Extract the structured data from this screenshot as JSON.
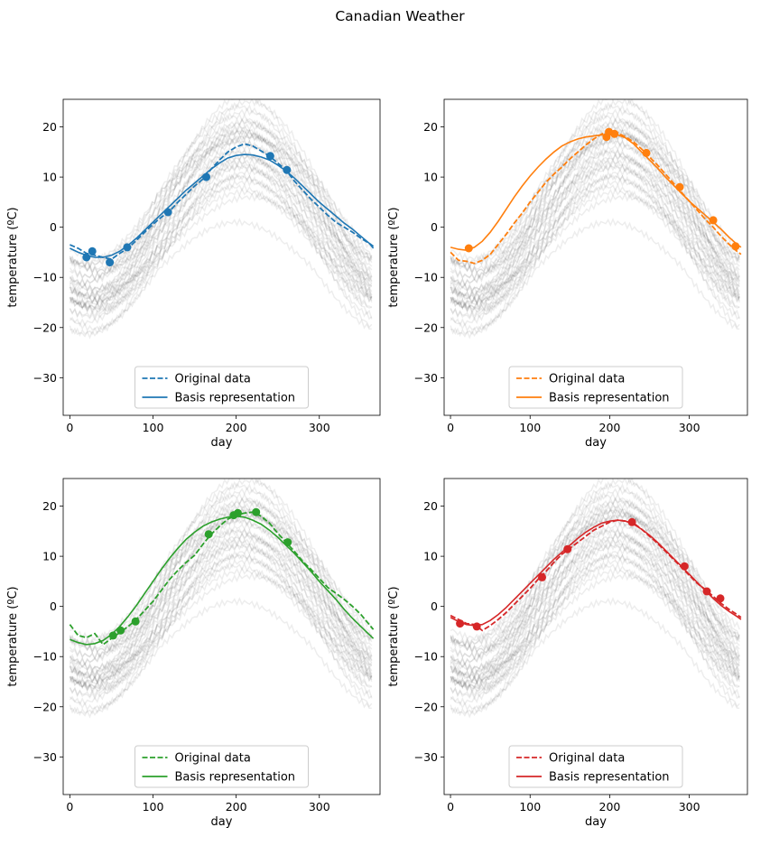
{
  "figure": {
    "title": "Canadian Weather"
  },
  "chart_data": [
    {
      "type": "line",
      "xlabel": "day",
      "ylabel": "temperature (ºC)",
      "xlim": [
        -8,
        373
      ],
      "ylim": [
        -37.5,
        25.5
      ],
      "xticks": [
        0,
        100,
        200,
        300
      ],
      "yticks": [
        -30,
        -20,
        -10,
        0,
        10,
        20
      ],
      "color": "#1f77b4",
      "legend": {
        "location": "lower center",
        "entries": [
          "Original data",
          "Basis representation"
        ]
      },
      "original_data": [
        [
          0,
          -3.5
        ],
        [
          10,
          -4.2
        ],
        [
          20,
          -5.2
        ],
        [
          30,
          -5.6
        ],
        [
          40,
          -6.0
        ],
        [
          50,
          -6.4
        ],
        [
          60,
          -5.2
        ],
        [
          70,
          -4.2
        ],
        [
          80,
          -2.6
        ],
        [
          90,
          -1.0
        ],
        [
          100,
          0.6
        ],
        [
          110,
          2.0
        ],
        [
          120,
          3.2
        ],
        [
          130,
          5.0
        ],
        [
          140,
          6.6
        ],
        [
          150,
          8.2
        ],
        [
          160,
          9.6
        ],
        [
          170,
          11.6
        ],
        [
          180,
          13.4
        ],
        [
          190,
          15.0
        ],
        [
          200,
          16.0
        ],
        [
          210,
          16.6
        ],
        [
          220,
          16.2
        ],
        [
          230,
          15.2
        ],
        [
          240,
          14.2
        ],
        [
          250,
          12.8
        ],
        [
          260,
          11.4
        ],
        [
          270,
          9.2
        ],
        [
          280,
          7.4
        ],
        [
          290,
          5.6
        ],
        [
          300,
          4.0
        ],
        [
          310,
          2.4
        ],
        [
          320,
          1.0
        ],
        [
          330,
          0.0
        ],
        [
          340,
          -1.0
        ],
        [
          350,
          -2.2
        ],
        [
          360,
          -3.2
        ],
        [
          365,
          -3.8
        ]
      ],
      "basis_representation": [
        [
          0,
          -4.2
        ],
        [
          10,
          -5.0
        ],
        [
          20,
          -5.6
        ],
        [
          30,
          -6.0
        ],
        [
          40,
          -6.0
        ],
        [
          50,
          -5.6
        ],
        [
          60,
          -4.8
        ],
        [
          70,
          -3.6
        ],
        [
          80,
          -2.2
        ],
        [
          90,
          -0.6
        ],
        [
          100,
          1.0
        ],
        [
          110,
          2.6
        ],
        [
          120,
          4.2
        ],
        [
          130,
          5.8
        ],
        [
          140,
          7.4
        ],
        [
          150,
          8.8
        ],
        [
          160,
          10.2
        ],
        [
          170,
          11.6
        ],
        [
          180,
          12.8
        ],
        [
          190,
          13.8
        ],
        [
          200,
          14.3
        ],
        [
          210,
          14.5
        ],
        [
          220,
          14.4
        ],
        [
          230,
          14.0
        ],
        [
          240,
          13.4
        ],
        [
          250,
          12.4
        ],
        [
          260,
          11.2
        ],
        [
          270,
          9.8
        ],
        [
          280,
          8.2
        ],
        [
          290,
          6.6
        ],
        [
          300,
          5.0
        ],
        [
          310,
          3.6
        ],
        [
          320,
          2.2
        ],
        [
          330,
          0.8
        ],
        [
          340,
          -0.4
        ],
        [
          350,
          -1.8
        ],
        [
          360,
          -3.2
        ],
        [
          365,
          -4.2
        ]
      ],
      "sample_points": [
        [
          20,
          -6.0
        ],
        [
          27,
          -4.8
        ],
        [
          48,
          -7.0
        ],
        [
          69,
          -4.0
        ],
        [
          118,
          3.0
        ],
        [
          164,
          10.0
        ],
        [
          241,
          14.2
        ],
        [
          261,
          11.4
        ]
      ]
    },
    {
      "type": "line",
      "xlabel": "day",
      "ylabel": "temperature (ºC)",
      "xlim": [
        -8,
        373
      ],
      "ylim": [
        -37.5,
        25.5
      ],
      "xticks": [
        0,
        100,
        200,
        300
      ],
      "yticks": [
        -30,
        -20,
        -10,
        0,
        10,
        20
      ],
      "color": "#ff7f0e",
      "legend": {
        "location": "lower center",
        "entries": [
          "Original data",
          "Basis representation"
        ]
      },
      "original_data": [
        [
          0,
          -5.0
        ],
        [
          10,
          -6.6
        ],
        [
          20,
          -6.8
        ],
        [
          30,
          -7.2
        ],
        [
          40,
          -6.6
        ],
        [
          50,
          -5.4
        ],
        [
          60,
          -3.4
        ],
        [
          70,
          -1.4
        ],
        [
          80,
          0.8
        ],
        [
          90,
          2.8
        ],
        [
          100,
          5.0
        ],
        [
          110,
          7.0
        ],
        [
          120,
          9.0
        ],
        [
          130,
          10.6
        ],
        [
          140,
          12.0
        ],
        [
          150,
          13.6
        ],
        [
          160,
          15.0
        ],
        [
          170,
          16.4
        ],
        [
          180,
          17.6
        ],
        [
          190,
          18.6
        ],
        [
          200,
          19.0
        ],
        [
          210,
          18.8
        ],
        [
          220,
          18.0
        ],
        [
          230,
          17.0
        ],
        [
          240,
          15.6
        ],
        [
          250,
          14.0
        ],
        [
          260,
          12.4
        ],
        [
          270,
          10.6
        ],
        [
          280,
          8.8
        ],
        [
          290,
          7.0
        ],
        [
          300,
          5.2
        ],
        [
          310,
          3.4
        ],
        [
          320,
          1.6
        ],
        [
          330,
          0.0
        ],
        [
          340,
          -1.8
        ],
        [
          350,
          -3.4
        ],
        [
          360,
          -4.8
        ],
        [
          365,
          -5.4
        ]
      ],
      "basis_representation": [
        [
          0,
          -4.0
        ],
        [
          10,
          -4.4
        ],
        [
          20,
          -4.6
        ],
        [
          30,
          -4.0
        ],
        [
          40,
          -2.8
        ],
        [
          50,
          -1.0
        ],
        [
          60,
          1.2
        ],
        [
          70,
          3.6
        ],
        [
          80,
          6.0
        ],
        [
          90,
          8.2
        ],
        [
          100,
          10.2
        ],
        [
          110,
          12.0
        ],
        [
          120,
          13.6
        ],
        [
          130,
          15.0
        ],
        [
          140,
          16.2
        ],
        [
          150,
          17.0
        ],
        [
          160,
          17.6
        ],
        [
          170,
          18.0
        ],
        [
          180,
          18.2
        ],
        [
          190,
          18.4
        ],
        [
          200,
          18.5
        ],
        [
          210,
          18.4
        ],
        [
          220,
          17.8
        ],
        [
          230,
          16.6
        ],
        [
          240,
          15.0
        ],
        [
          250,
          13.4
        ],
        [
          260,
          11.8
        ],
        [
          270,
          10.0
        ],
        [
          280,
          8.4
        ],
        [
          290,
          6.8
        ],
        [
          300,
          5.2
        ],
        [
          310,
          3.8
        ],
        [
          320,
          2.4
        ],
        [
          330,
          1.0
        ],
        [
          340,
          -0.4
        ],
        [
          350,
          -2.0
        ],
        [
          360,
          -3.4
        ],
        [
          365,
          -4.0
        ]
      ],
      "sample_points": [
        [
          23,
          -4.2
        ],
        [
          196,
          18.0
        ],
        [
          199,
          19.0
        ],
        [
          206,
          18.6
        ],
        [
          246,
          14.8
        ],
        [
          288,
          8.0
        ],
        [
          330,
          1.4
        ],
        [
          358,
          -3.8
        ]
      ]
    },
    {
      "type": "line",
      "xlabel": "day",
      "ylabel": "temperature (ºC)",
      "xlim": [
        -8,
        373
      ],
      "ylim": [
        -37.5,
        25.5
      ],
      "xticks": [
        0,
        100,
        200,
        300
      ],
      "yticks": [
        -30,
        -20,
        -10,
        0,
        10,
        20
      ],
      "color": "#2ca02c",
      "legend": {
        "location": "lower center",
        "entries": [
          "Original data",
          "Basis representation"
        ]
      },
      "original_data": [
        [
          0,
          -3.6
        ],
        [
          10,
          -5.8
        ],
        [
          20,
          -6.2
        ],
        [
          30,
          -5.4
        ],
        [
          40,
          -7.6
        ],
        [
          50,
          -6.4
        ],
        [
          60,
          -5.2
        ],
        [
          70,
          -4.0
        ],
        [
          80,
          -2.6
        ],
        [
          90,
          -0.8
        ],
        [
          100,
          1.0
        ],
        [
          110,
          3.2
        ],
        [
          120,
          5.4
        ],
        [
          130,
          7.2
        ],
        [
          140,
          8.8
        ],
        [
          150,
          10.2
        ],
        [
          160,
          12.4
        ],
        [
          170,
          14.4
        ],
        [
          180,
          16.0
        ],
        [
          190,
          17.4
        ],
        [
          200,
          18.2
        ],
        [
          210,
          18.6
        ],
        [
          220,
          18.8
        ],
        [
          230,
          18.0
        ],
        [
          240,
          16.6
        ],
        [
          250,
          14.6
        ],
        [
          260,
          12.8
        ],
        [
          270,
          11.0
        ],
        [
          280,
          9.0
        ],
        [
          290,
          7.4
        ],
        [
          300,
          5.6
        ],
        [
          310,
          3.8
        ],
        [
          320,
          2.6
        ],
        [
          330,
          1.4
        ],
        [
          340,
          0.0
        ],
        [
          350,
          -1.6
        ],
        [
          360,
          -3.6
        ],
        [
          365,
          -4.6
        ]
      ],
      "basis_representation": [
        [
          0,
          -6.6
        ],
        [
          10,
          -7.2
        ],
        [
          20,
          -7.6
        ],
        [
          30,
          -7.4
        ],
        [
          40,
          -6.8
        ],
        [
          50,
          -5.6
        ],
        [
          60,
          -4.0
        ],
        [
          70,
          -2.0
        ],
        [
          80,
          0.2
        ],
        [
          90,
          2.6
        ],
        [
          100,
          5.0
        ],
        [
          110,
          7.4
        ],
        [
          120,
          9.6
        ],
        [
          130,
          11.6
        ],
        [
          140,
          13.4
        ],
        [
          150,
          14.8
        ],
        [
          160,
          16.0
        ],
        [
          170,
          16.8
        ],
        [
          180,
          17.4
        ],
        [
          190,
          17.8
        ],
        [
          200,
          18.0
        ],
        [
          210,
          17.8
        ],
        [
          220,
          17.2
        ],
        [
          230,
          16.4
        ],
        [
          240,
          15.2
        ],
        [
          250,
          13.8
        ],
        [
          260,
          12.2
        ],
        [
          270,
          10.6
        ],
        [
          280,
          8.8
        ],
        [
          290,
          7.0
        ],
        [
          300,
          5.0
        ],
        [
          310,
          3.2
        ],
        [
          320,
          1.4
        ],
        [
          330,
          -0.6
        ],
        [
          340,
          -2.4
        ],
        [
          350,
          -4.0
        ],
        [
          360,
          -5.6
        ],
        [
          365,
          -6.4
        ]
      ],
      "sample_points": [
        [
          52,
          -5.8
        ],
        [
          61,
          -4.8
        ],
        [
          79,
          -3.0
        ],
        [
          167,
          14.4
        ],
        [
          197,
          18.2
        ],
        [
          202,
          18.6
        ],
        [
          224,
          18.8
        ],
        [
          262,
          12.8
        ]
      ]
    },
    {
      "type": "line",
      "xlabel": "day",
      "ylabel": "temperature (ºC)",
      "xlim": [
        -8,
        373
      ],
      "ylim": [
        -37.5,
        25.5
      ],
      "xticks": [
        0,
        100,
        200,
        300
      ],
      "yticks": [
        -30,
        -20,
        -10,
        0,
        10,
        20
      ],
      "color": "#d62728",
      "legend": {
        "location": "lower center",
        "entries": [
          "Original data",
          "Basis representation"
        ]
      },
      "original_data": [
        [
          0,
          -1.8
        ],
        [
          10,
          -2.6
        ],
        [
          20,
          -3.4
        ],
        [
          30,
          -3.6
        ],
        [
          40,
          -4.8
        ],
        [
          50,
          -3.8
        ],
        [
          60,
          -2.6
        ],
        [
          70,
          -1.2
        ],
        [
          80,
          0.4
        ],
        [
          90,
          2.0
        ],
        [
          100,
          3.6
        ],
        [
          110,
          5.4
        ],
        [
          120,
          7.0
        ],
        [
          130,
          8.8
        ],
        [
          140,
          10.4
        ],
        [
          150,
          11.6
        ],
        [
          160,
          12.8
        ],
        [
          170,
          14.0
        ],
        [
          180,
          15.2
        ],
        [
          190,
          16.0
        ],
        [
          200,
          16.8
        ],
        [
          210,
          17.2
        ],
        [
          220,
          17.0
        ],
        [
          230,
          16.6
        ],
        [
          240,
          15.4
        ],
        [
          250,
          14.0
        ],
        [
          260,
          12.6
        ],
        [
          270,
          11.0
        ],
        [
          280,
          9.4
        ],
        [
          290,
          7.8
        ],
        [
          300,
          6.2
        ],
        [
          310,
          4.6
        ],
        [
          320,
          3.4
        ],
        [
          330,
          2.0
        ],
        [
          340,
          0.6
        ],
        [
          350,
          -0.6
        ],
        [
          360,
          -1.6
        ],
        [
          365,
          -2.2
        ]
      ],
      "basis_representation": [
        [
          0,
          -2.2
        ],
        [
          10,
          -3.0
        ],
        [
          20,
          -3.6
        ],
        [
          30,
          -3.8
        ],
        [
          40,
          -3.6
        ],
        [
          50,
          -2.8
        ],
        [
          60,
          -1.6
        ],
        [
          70,
          -0.2
        ],
        [
          80,
          1.4
        ],
        [
          90,
          3.0
        ],
        [
          100,
          4.6
        ],
        [
          110,
          6.2
        ],
        [
          120,
          7.8
        ],
        [
          130,
          9.4
        ],
        [
          140,
          10.8
        ],
        [
          150,
          12.2
        ],
        [
          160,
          13.6
        ],
        [
          170,
          14.8
        ],
        [
          180,
          15.8
        ],
        [
          190,
          16.6
        ],
        [
          200,
          17.0
        ],
        [
          210,
          17.2
        ],
        [
          220,
          17.0
        ],
        [
          230,
          16.4
        ],
        [
          240,
          15.4
        ],
        [
          250,
          14.2
        ],
        [
          260,
          12.8
        ],
        [
          270,
          11.2
        ],
        [
          280,
          9.6
        ],
        [
          290,
          8.0
        ],
        [
          300,
          6.4
        ],
        [
          310,
          4.8
        ],
        [
          320,
          3.2
        ],
        [
          330,
          1.6
        ],
        [
          340,
          0.2
        ],
        [
          350,
          -1.0
        ],
        [
          360,
          -2.0
        ],
        [
          365,
          -2.6
        ]
      ],
      "sample_points": [
        [
          12,
          -3.4
        ],
        [
          33,
          -4.0
        ],
        [
          115,
          5.8
        ],
        [
          147,
          11.4
        ],
        [
          228,
          16.8
        ],
        [
          294,
          8.0
        ],
        [
          322,
          3.0
        ],
        [
          339,
          1.6
        ]
      ]
    }
  ]
}
